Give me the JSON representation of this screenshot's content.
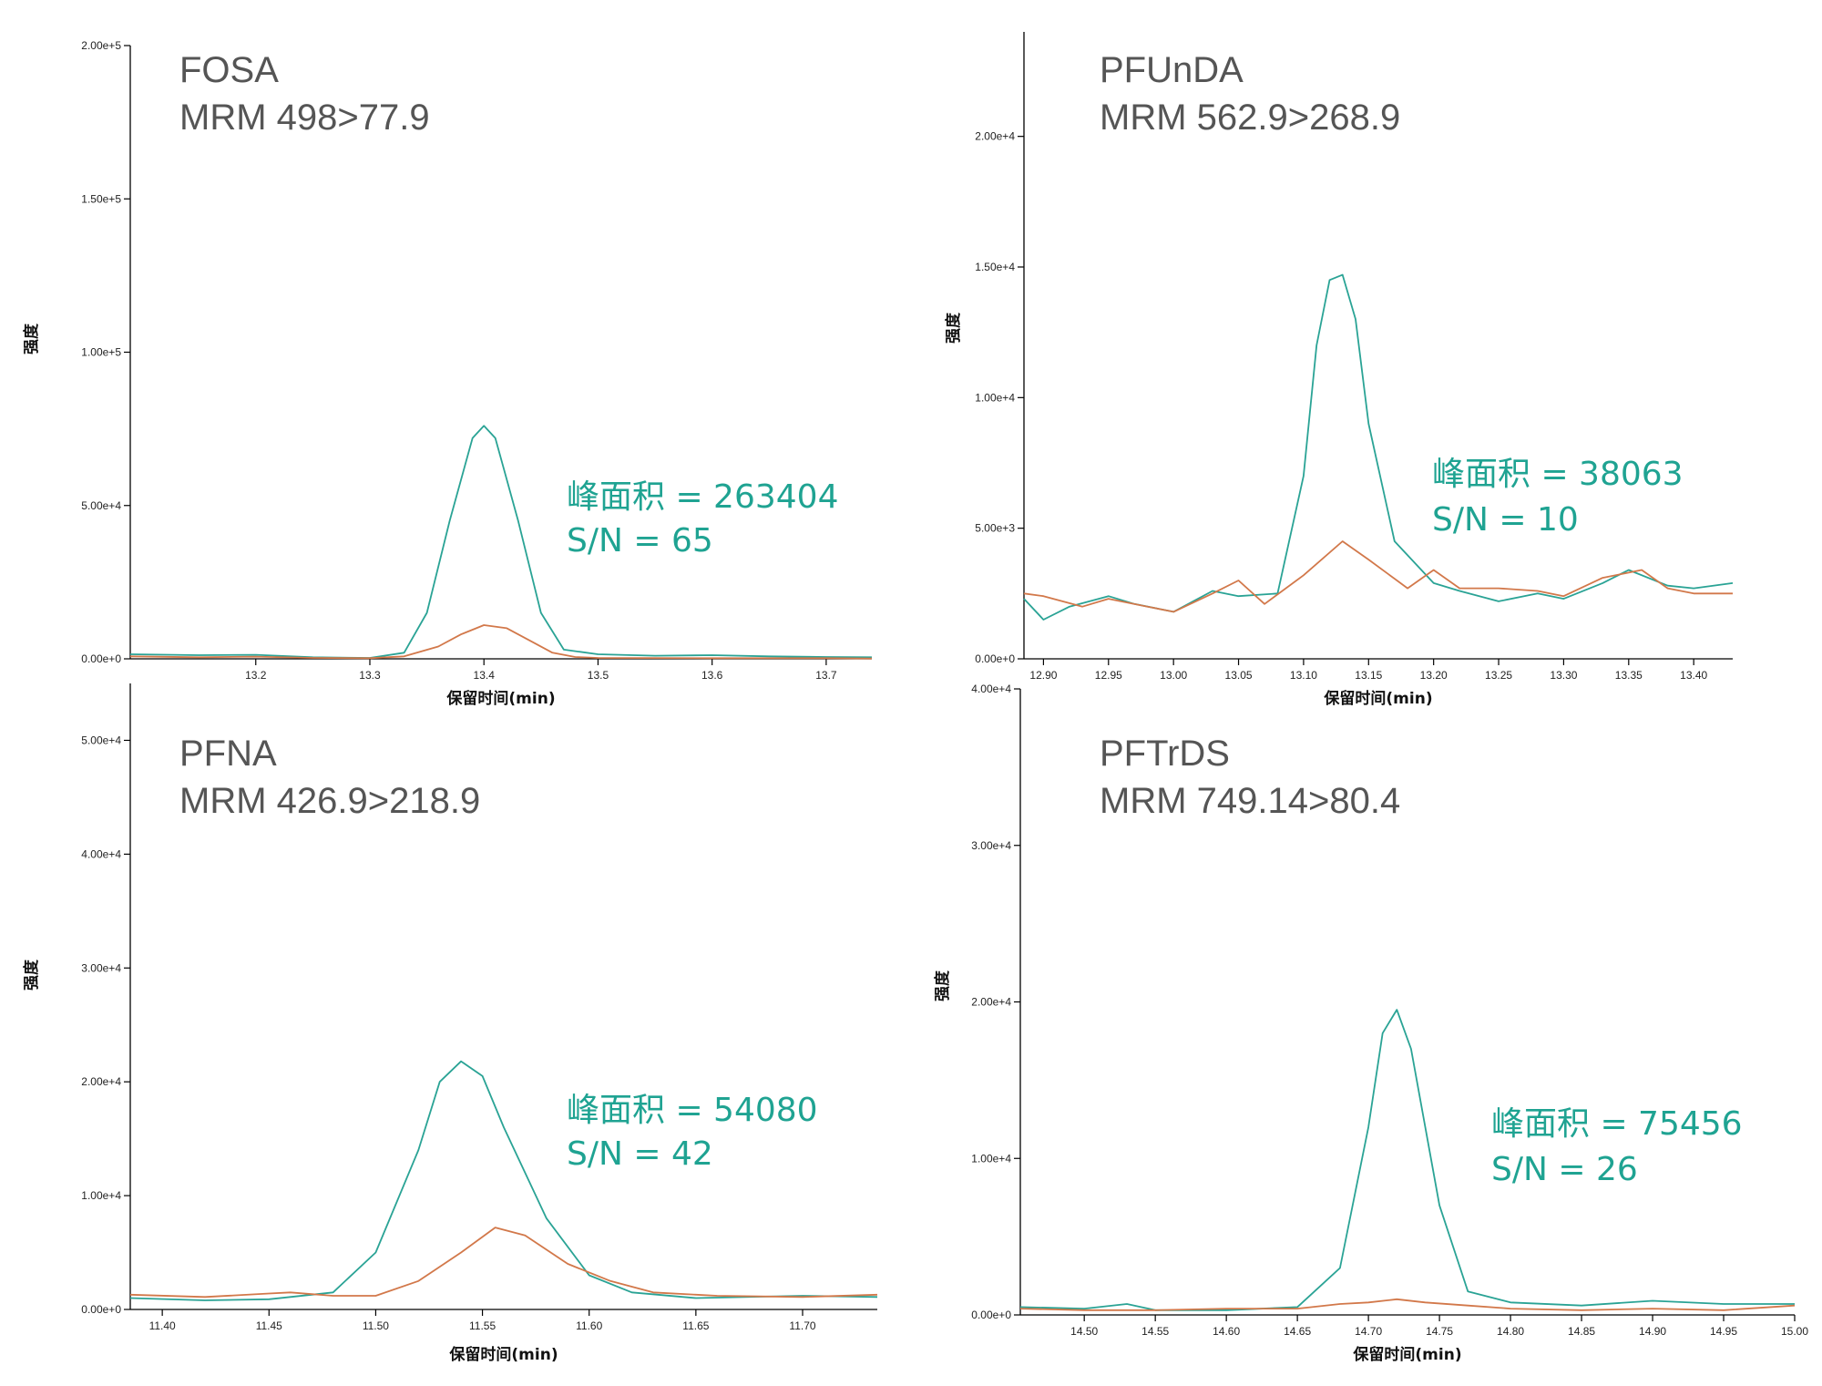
{
  "colors": {
    "series1": "#2aa395",
    "series2": "#d2784a",
    "annotation": "#1fa392"
  },
  "chart_data": [
    {
      "type": "line",
      "title": "FOSA",
      "subtitle": "MRM 498>77.9",
      "xlabel": "保留时间(min)",
      "ylabel": "强度",
      "xlim": [
        13.09,
        13.74
      ],
      "ylim": [
        0,
        200000
      ],
      "xticks": [
        13.2,
        13.3,
        13.4,
        13.5,
        13.6,
        13.7
      ],
      "xtick_labels": [
        "13.2",
        "13.3",
        "13.4",
        "13.5",
        "13.6",
        "13.7"
      ],
      "yticks": [
        0,
        50000,
        100000,
        150000,
        200000
      ],
      "ytick_labels": [
        "0.00e+0",
        "5.00e+4",
        "1.00e+5",
        "1.50e+5",
        "2.00e+5"
      ],
      "annotations": [
        "峰面积 = 263404",
        "S/N = 65"
      ],
      "series": [
        {
          "x": [
            13.09,
            13.15,
            13.2,
            13.25,
            13.3,
            13.33,
            13.35,
            13.37,
            13.39,
            13.4,
            13.41,
            13.43,
            13.45,
            13.47,
            13.5,
            13.55,
            13.6,
            13.65,
            13.7,
            13.74
          ],
          "y": [
            1500,
            1200,
            1300,
            500,
            300,
            2000,
            15000,
            45000,
            72000,
            76000,
            72000,
            45000,
            15000,
            3000,
            1500,
            1000,
            1200,
            800,
            600,
            500
          ]
        },
        {
          "x": [
            13.09,
            13.15,
            13.2,
            13.25,
            13.3,
            13.33,
            13.36,
            13.38,
            13.4,
            13.42,
            13.44,
            13.46,
            13.48,
            13.5,
            13.6,
            13.7,
            13.74
          ],
          "y": [
            800,
            500,
            700,
            300,
            200,
            800,
            4000,
            8000,
            11000,
            10000,
            6000,
            2000,
            600,
            300,
            200,
            200,
            100
          ]
        }
      ]
    },
    {
      "type": "line",
      "title": "PFUnDA",
      "subtitle": "MRM 562.9>268.9",
      "xlabel": "保留时间(min)",
      "ylabel": "强度",
      "xlim": [
        12.885,
        13.43
      ],
      "ylim": [
        0,
        24000
      ],
      "xticks": [
        12.9,
        12.95,
        13.0,
        13.05,
        13.1,
        13.15,
        13.2,
        13.25,
        13.3,
        13.35,
        13.4
      ],
      "xtick_labels": [
        "12.90",
        "12.95",
        "13.00",
        "13.05",
        "13.10",
        "13.15",
        "13.20",
        "13.25",
        "13.30",
        "13.35",
        "13.40"
      ],
      "yticks": [
        0,
        5000,
        10000,
        15000,
        20000
      ],
      "ytick_labels": [
        "0.00e+0",
        "5.00e+3",
        "1.00e+4",
        "1.50e+4",
        "2.00e+4"
      ],
      "annotations": [
        "峰面积 = 38063",
        "S/N = 10"
      ],
      "series": [
        {
          "x": [
            12.885,
            12.9,
            12.92,
            12.95,
            12.97,
            13.0,
            13.03,
            13.05,
            13.08,
            13.1,
            13.11,
            13.12,
            13.13,
            13.14,
            13.15,
            13.17,
            13.2,
            13.22,
            13.25,
            13.28,
            13.3,
            13.33,
            13.35,
            13.38,
            13.4,
            13.43
          ],
          "y": [
            2300,
            1500,
            2000,
            2400,
            2100,
            1800,
            2600,
            2400,
            2500,
            7000,
            12000,
            14500,
            14700,
            13000,
            9000,
            4500,
            2900,
            2600,
            2200,
            2500,
            2300,
            2900,
            3400,
            2800,
            2700,
            2900
          ]
        },
        {
          "x": [
            12.885,
            12.9,
            12.93,
            12.95,
            12.98,
            13.0,
            13.03,
            13.05,
            13.07,
            13.1,
            13.13,
            13.15,
            13.18,
            13.2,
            13.22,
            13.25,
            13.28,
            13.3,
            13.33,
            13.36,
            13.38,
            13.4,
            13.43
          ],
          "y": [
            2500,
            2400,
            2000,
            2300,
            2000,
            1800,
            2500,
            3000,
            2100,
            3200,
            4500,
            3800,
            2700,
            3400,
            2700,
            2700,
            2600,
            2400,
            3100,
            3400,
            2700,
            2500,
            2500
          ]
        }
      ]
    },
    {
      "type": "line",
      "title": "PFNA",
      "subtitle": "MRM 426.9>218.9",
      "xlabel": "保留时间(min)",
      "ylabel": "强度",
      "xlim": [
        11.385,
        11.735
      ],
      "ylim": [
        0,
        55000
      ],
      "xticks": [
        11.4,
        11.45,
        11.5,
        11.55,
        11.6,
        11.65,
        11.7
      ],
      "xtick_labels": [
        "11.40",
        "11.45",
        "11.50",
        "11.55",
        "11.60",
        "11.65",
        "11.70"
      ],
      "yticks": [
        0,
        10000,
        20000,
        30000,
        40000,
        50000
      ],
      "ytick_labels": [
        "0.00e+0",
        "1.00e+4",
        "2.00e+4",
        "3.00e+4",
        "4.00e+4",
        "5.00e+4"
      ],
      "annotations": [
        "峰面积 = 54080",
        "S/N = 42"
      ],
      "series": [
        {
          "x": [
            11.385,
            11.42,
            11.45,
            11.48,
            11.5,
            11.52,
            11.53,
            11.54,
            11.55,
            11.56,
            11.58,
            11.6,
            11.62,
            11.65,
            11.7,
            11.735
          ],
          "y": [
            1000,
            800,
            900,
            1500,
            5000,
            14000,
            20000,
            21800,
            20500,
            16000,
            8000,
            3000,
            1500,
            1000,
            1200,
            1100
          ]
        },
        {
          "x": [
            11.385,
            11.42,
            11.45,
            11.46,
            11.48,
            11.5,
            11.52,
            11.54,
            11.556,
            11.57,
            11.59,
            11.61,
            11.63,
            11.66,
            11.7,
            11.735
          ],
          "y": [
            1300,
            1100,
            1400,
            1500,
            1200,
            1200,
            2500,
            5000,
            7200,
            6500,
            4000,
            2500,
            1500,
            1200,
            1100,
            1300
          ]
        }
      ]
    },
    {
      "type": "line",
      "title": "PFTrDS",
      "subtitle": "MRM 749.14>80.4",
      "xlabel": "保留时间(min)",
      "ylabel": "强度",
      "xlim": [
        14.455,
        15.0
      ],
      "ylim": [
        0,
        40000
      ],
      "xticks": [
        14.5,
        14.55,
        14.6,
        14.65,
        14.7,
        14.75,
        14.8,
        14.85,
        14.9,
        14.95,
        15.0
      ],
      "xtick_labels": [
        "14.50",
        "14.55",
        "14.60",
        "14.65",
        "14.70",
        "14.75",
        "14.80",
        "14.85",
        "14.90",
        "14.95",
        "15.00"
      ],
      "yticks": [
        0,
        10000,
        20000,
        30000,
        40000
      ],
      "ytick_labels": [
        "0.00e+0",
        "1.00e+4",
        "2.00e+4",
        "3.00e+4",
        "4.00e+4"
      ],
      "annotations": [
        "峰面积 = 75456",
        "S/N = 26"
      ],
      "series": [
        {
          "x": [
            14.455,
            14.5,
            14.53,
            14.55,
            14.6,
            14.65,
            14.68,
            14.7,
            14.71,
            14.72,
            14.73,
            14.75,
            14.77,
            14.8,
            14.85,
            14.9,
            14.95,
            15.0
          ],
          "y": [
            500,
            400,
            700,
            300,
            300,
            500,
            3000,
            12000,
            18000,
            19500,
            17000,
            7000,
            1500,
            800,
            600,
            900,
            700,
            700
          ]
        },
        {
          "x": [
            14.455,
            14.5,
            14.55,
            14.6,
            14.65,
            14.68,
            14.7,
            14.72,
            14.74,
            14.77,
            14.8,
            14.85,
            14.9,
            14.95,
            15.0
          ],
          "y": [
            400,
            300,
            300,
            400,
            400,
            700,
            800,
            1000,
            800,
            600,
            400,
            300,
            400,
            300,
            600
          ]
        }
      ]
    }
  ]
}
